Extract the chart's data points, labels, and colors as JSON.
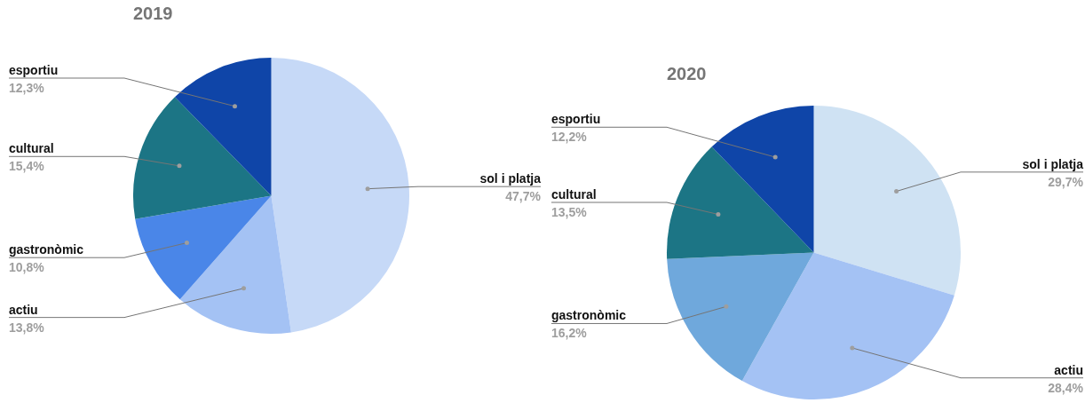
{
  "chart_data": [
    {
      "type": "pie",
      "title": "2019",
      "legend": false,
      "categories": [
        "sol i platja",
        "actiu",
        "gastronòmic",
        "cultural",
        "esportiu"
      ],
      "values": [
        47.7,
        13.8,
        10.8,
        15.4,
        12.3
      ],
      "value_labels": [
        "47,7%",
        "13,8%",
        "10,8%",
        "15,4%",
        "12,3%"
      ],
      "colors": [
        "#c6d9f7",
        "#a4c2f4",
        "#4a86e8",
        "#1c7585",
        "#0f45a8"
      ]
    },
    {
      "type": "pie",
      "title": "2020",
      "legend": false,
      "categories": [
        "sol i platja",
        "actiu",
        "gastronòmic",
        "cultural",
        "esportiu"
      ],
      "values": [
        29.7,
        28.4,
        16.2,
        13.5,
        12.2
      ],
      "value_labels": [
        "29,7%",
        "28,4%",
        "16,2%",
        "13,5%",
        "12,2%"
      ],
      "colors": [
        "#cfe2f3",
        "#a4c2f4",
        "#6fa8dc",
        "#1c7585",
        "#0f45a8"
      ]
    }
  ]
}
